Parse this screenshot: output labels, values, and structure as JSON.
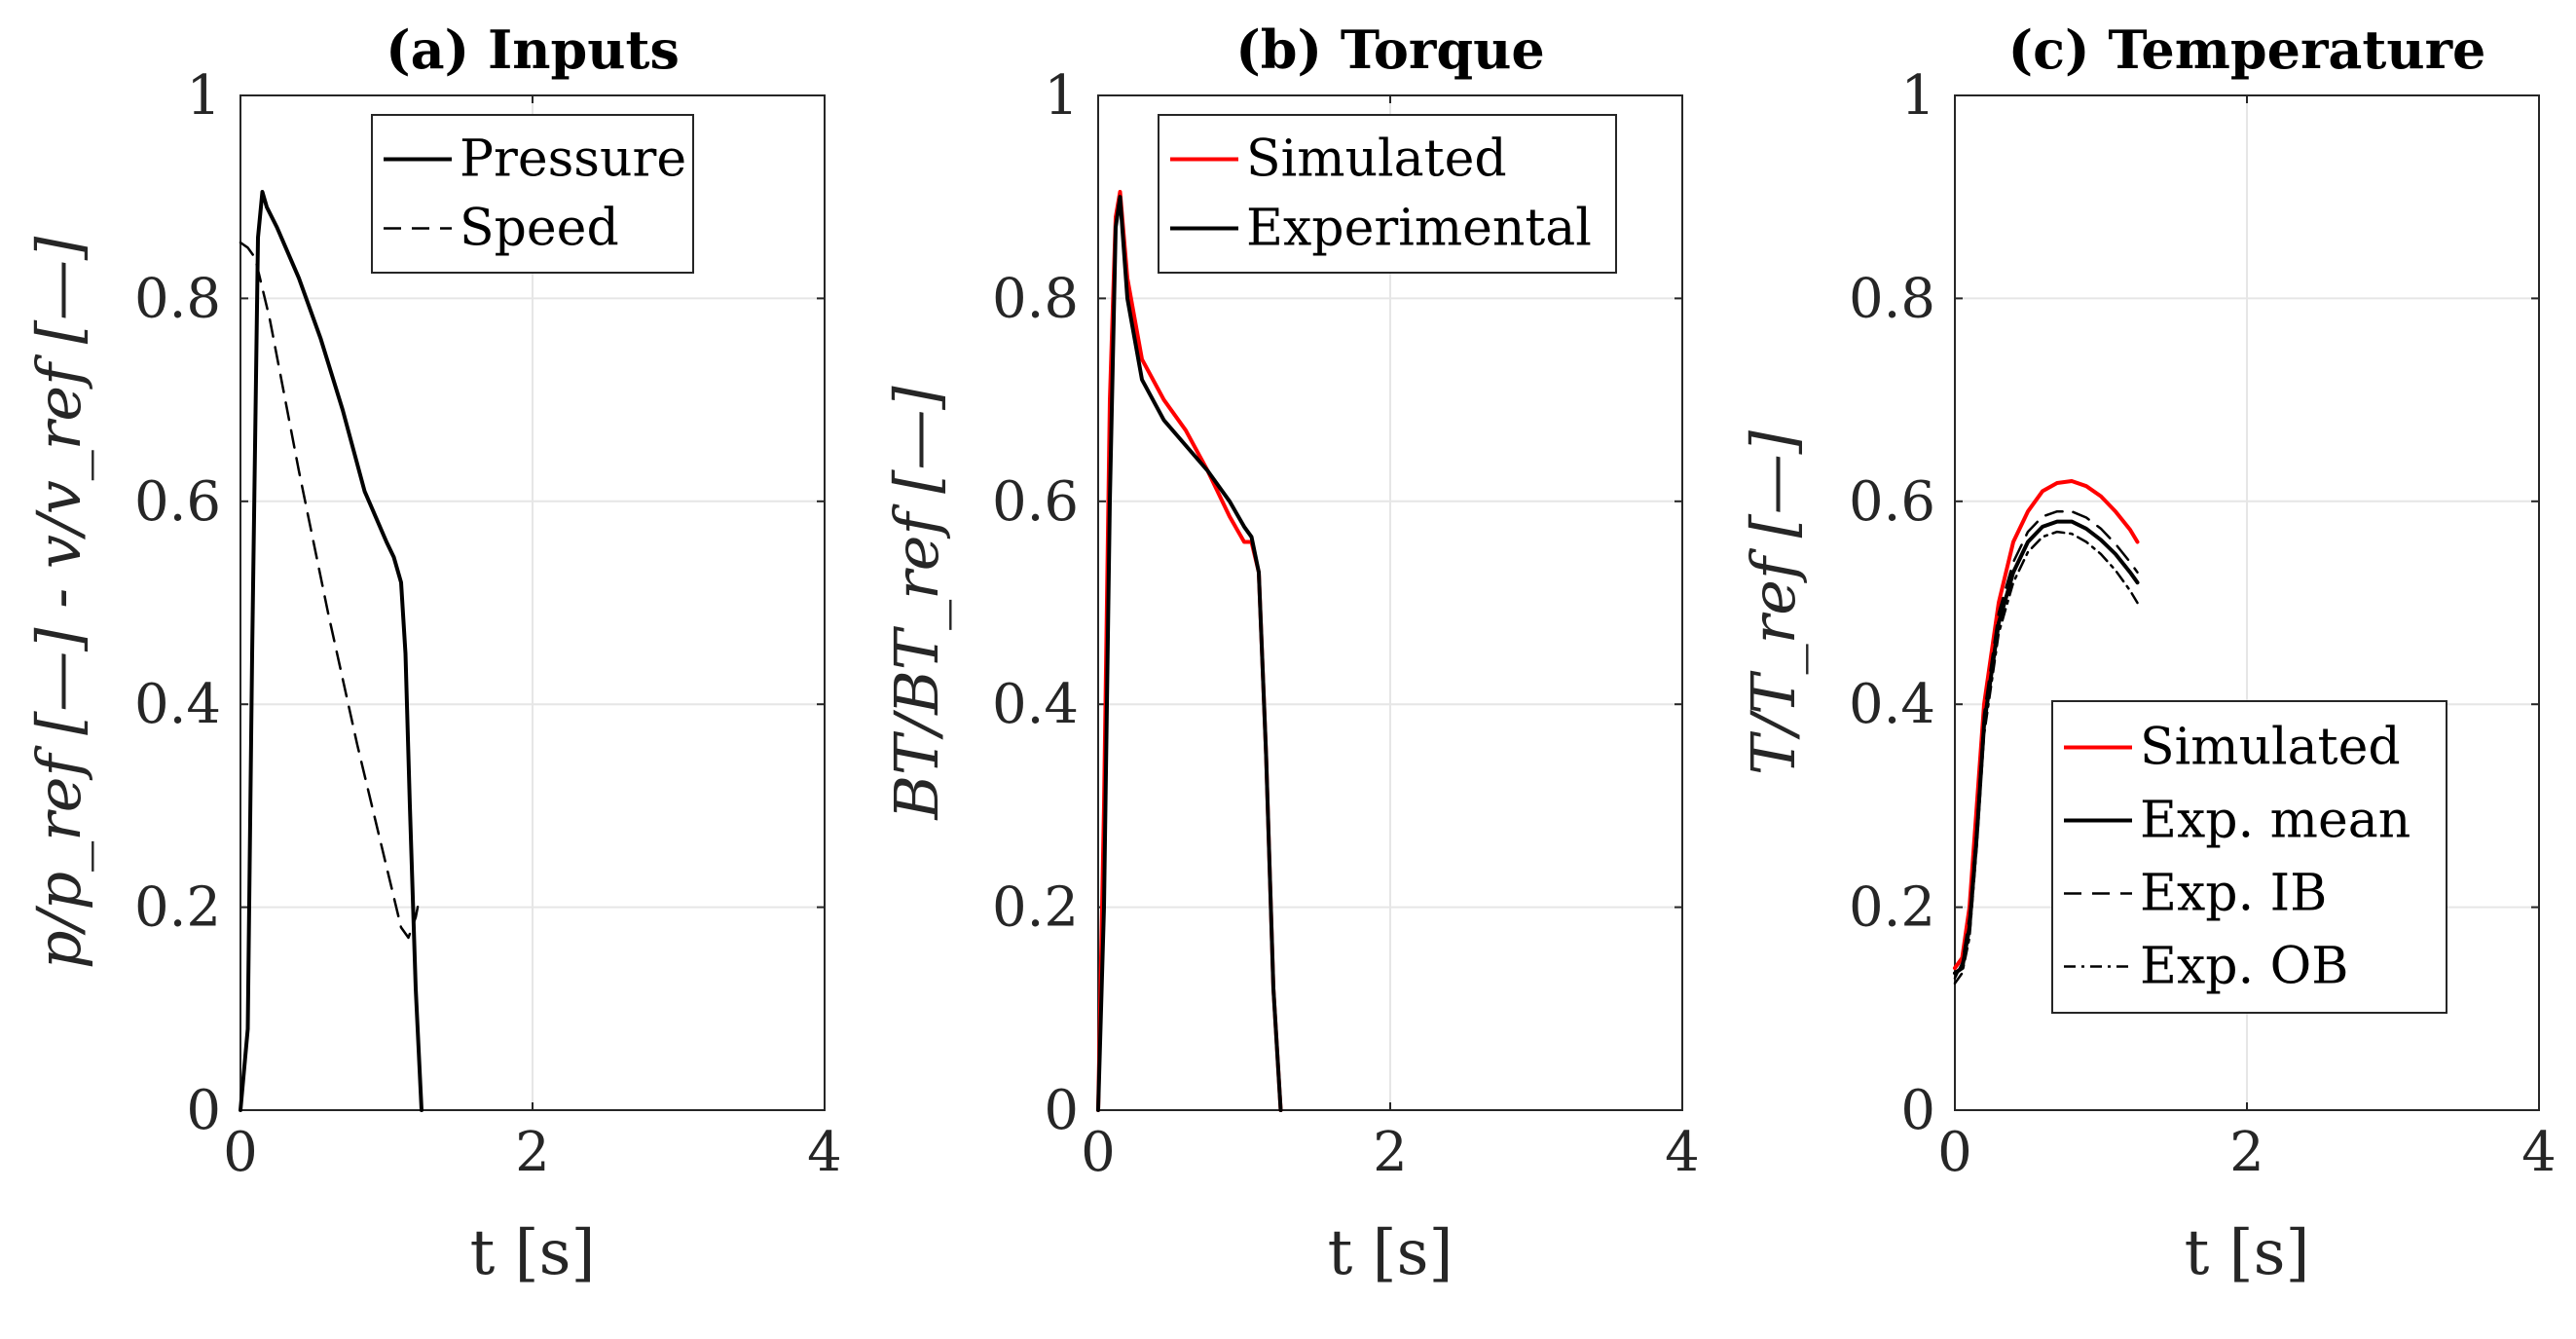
{
  "chart_data": [
    {
      "type": "line",
      "title": "(a) Inputs",
      "xlabel": "t [s]",
      "ylabel": "p/p_ref [—] - v/v_ref [—]",
      "xlim": [
        0,
        4
      ],
      "ylim": [
        0,
        1
      ],
      "xticks": [
        "0",
        "2",
        "4"
      ],
      "yticks": [
        "0",
        "0.2",
        "0.4",
        "0.6",
        "0.8",
        "1"
      ],
      "grid": true,
      "legend": "top-right",
      "series": [
        {
          "name": "Pressure",
          "color": "#000000",
          "dash": "solid",
          "x": [
            0,
            0.05,
            0.08,
            0.12,
            0.15,
            0.18,
            0.25,
            0.4,
            0.55,
            0.7,
            0.85,
            1.0,
            1.05,
            1.1,
            1.13,
            1.16,
            1.2,
            1.24
          ],
          "y": [
            0,
            0.08,
            0.45,
            0.86,
            0.905,
            0.89,
            0.87,
            0.82,
            0.76,
            0.69,
            0.61,
            0.56,
            0.545,
            0.52,
            0.45,
            0.3,
            0.12,
            0
          ]
        },
        {
          "name": "Speed",
          "color": "#000000",
          "dash": "dashed",
          "x": [
            0,
            0.05,
            0.1,
            0.2,
            0.4,
            0.6,
            0.8,
            1.0,
            1.1,
            1.15,
            1.2,
            1.22
          ],
          "y": [
            0.855,
            0.85,
            0.84,
            0.78,
            0.63,
            0.49,
            0.36,
            0.24,
            0.18,
            0.17,
            0.19,
            0.205
          ]
        }
      ]
    },
    {
      "type": "line",
      "title": "(b) Torque",
      "xlabel": "t [s]",
      "ylabel": "BT/BT_ref [—]",
      "xlim": [
        0,
        4
      ],
      "ylim": [
        0,
        1
      ],
      "xticks": [
        "0",
        "2",
        "4"
      ],
      "yticks": [
        "0",
        "0.2",
        "0.4",
        "0.6",
        "0.8",
        "1"
      ],
      "grid": true,
      "legend": "top-right",
      "series": [
        {
          "name": "Simulated",
          "color": "#ff0000",
          "dash": "solid",
          "x": [
            0,
            0.04,
            0.08,
            0.12,
            0.15,
            0.2,
            0.3,
            0.45,
            0.6,
            0.75,
            0.9,
            1.0,
            1.05,
            1.1,
            1.15,
            1.2,
            1.25
          ],
          "y": [
            0,
            0.3,
            0.7,
            0.88,
            0.905,
            0.82,
            0.74,
            0.7,
            0.67,
            0.63,
            0.585,
            0.56,
            0.56,
            0.53,
            0.35,
            0.12,
            0
          ]
        },
        {
          "name": "Experimental",
          "color": "#000000",
          "dash": "solid",
          "x": [
            0,
            0.04,
            0.08,
            0.12,
            0.15,
            0.2,
            0.3,
            0.45,
            0.6,
            0.75,
            0.9,
            1.0,
            1.05,
            1.1,
            1.15,
            1.2,
            1.25
          ],
          "y": [
            0,
            0.2,
            0.6,
            0.87,
            0.9,
            0.8,
            0.72,
            0.68,
            0.655,
            0.63,
            0.6,
            0.575,
            0.565,
            0.53,
            0.35,
            0.12,
            0
          ]
        }
      ]
    },
    {
      "type": "line",
      "title": "(c) Temperature",
      "xlabel": "t [s]",
      "ylabel": "T/T_ref [—]",
      "xlim": [
        0,
        4
      ],
      "ylim": [
        0,
        1
      ],
      "xticks": [
        "0",
        "2",
        "4"
      ],
      "yticks": [
        "0",
        "0.2",
        "0.4",
        "0.6",
        "0.8",
        "1"
      ],
      "grid": true,
      "legend": "center-right",
      "series": [
        {
          "name": "Simulated",
          "color": "#ff0000",
          "dash": "solid",
          "x": [
            0,
            0.05,
            0.1,
            0.15,
            0.2,
            0.3,
            0.4,
            0.5,
            0.6,
            0.7,
            0.8,
            0.9,
            1.0,
            1.1,
            1.2,
            1.25
          ],
          "y": [
            0.14,
            0.15,
            0.2,
            0.3,
            0.4,
            0.5,
            0.56,
            0.59,
            0.61,
            0.618,
            0.62,
            0.615,
            0.605,
            0.59,
            0.572,
            0.56
          ]
        },
        {
          "name": "Exp. mean",
          "color": "#000000",
          "dash": "solid",
          "x": [
            0,
            0.05,
            0.1,
            0.15,
            0.2,
            0.3,
            0.4,
            0.5,
            0.6,
            0.7,
            0.8,
            0.9,
            1.0,
            1.1,
            1.2,
            1.25
          ],
          "y": [
            0.135,
            0.14,
            0.18,
            0.27,
            0.38,
            0.48,
            0.53,
            0.56,
            0.575,
            0.58,
            0.58,
            0.573,
            0.562,
            0.548,
            0.53,
            0.52
          ]
        },
        {
          "name": "Exp. IB",
          "color": "#000000",
          "dash": "dashed",
          "x": [
            0,
            0.05,
            0.1,
            0.15,
            0.2,
            0.3,
            0.4,
            0.5,
            0.6,
            0.7,
            0.8,
            0.9,
            1.0,
            1.1,
            1.2,
            1.25
          ],
          "y": [
            0.13,
            0.145,
            0.19,
            0.28,
            0.39,
            0.49,
            0.54,
            0.57,
            0.585,
            0.59,
            0.59,
            0.584,
            0.573,
            0.558,
            0.54,
            0.53
          ]
        },
        {
          "name": "Exp. OB",
          "color": "#000000",
          "dash": "dashdot",
          "x": [
            0,
            0.05,
            0.1,
            0.15,
            0.2,
            0.3,
            0.4,
            0.5,
            0.6,
            0.7,
            0.8,
            0.9,
            1.0,
            1.1,
            1.2,
            1.25
          ],
          "y": [
            0.125,
            0.135,
            0.17,
            0.26,
            0.37,
            0.47,
            0.52,
            0.55,
            0.565,
            0.57,
            0.568,
            0.56,
            0.548,
            0.532,
            0.512,
            0.5
          ]
        }
      ]
    }
  ]
}
